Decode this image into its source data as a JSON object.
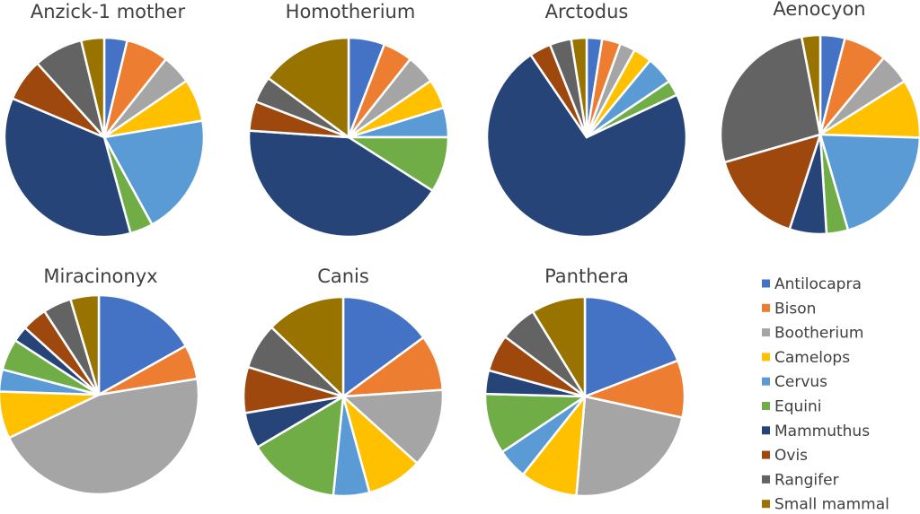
{
  "chart_data": [
    {
      "type": "pie",
      "title": "Anzick-1 mother",
      "categories": [
        "Antilocapra",
        "Bison",
        "Bootherium",
        "Camelops",
        "Cervus",
        "Equini",
        "Mammuthus",
        "Ovis",
        "Rangifer",
        "Small mammal"
      ],
      "values": [
        3.5,
        6.5,
        4.5,
        6.5,
        18.5,
        3.5,
        33.5,
        6.5,
        7.5,
        3.5
      ]
    },
    {
      "type": "pie",
      "title": "Homotherium",
      "categories": [
        "Antilocapra",
        "Bison",
        "Bootherium",
        "Camelops",
        "Cervus",
        "Equini",
        "Mammuthus",
        "Ovis",
        "Rangifer",
        "Small mammal"
      ],
      "values": [
        5.5,
        4.5,
        4.5,
        4.5,
        4.5,
        8.5,
        39.5,
        4.5,
        4.0,
        14.0
      ]
    },
    {
      "type": "pie",
      "title": "Arctodus",
      "categories": [
        "Antilocapra",
        "Bison",
        "Bootherium",
        "Camelops",
        "Cervus",
        "Equini",
        "Mammuthus",
        "Ovis",
        "Rangifer",
        "Small mammal"
      ],
      "values": [
        2.5,
        3.0,
        2.5,
        3.0,
        4.5,
        2.5,
        72.5,
        3.5,
        3.5,
        2.5
      ]
    },
    {
      "type": "pie",
      "title": "Aenocyon",
      "categories": [
        "Antilocapra",
        "Bison",
        "Bootherium",
        "Camelops",
        "Cervus",
        "Equini",
        "Mammuthus",
        "Ovis",
        "Rangifer",
        "Small mammal"
      ],
      "values": [
        4.0,
        7.0,
        5.0,
        9.5,
        20.0,
        3.5,
        6.0,
        15.5,
        26.5,
        3.0
      ]
    },
    {
      "type": "pie",
      "title": "Miracinonyx",
      "categories": [
        "Antilocapra",
        "Bison",
        "Bootherium",
        "Camelops",
        "Cervus",
        "Equini",
        "Mammuthus",
        "Ovis",
        "Rangifer",
        "Small mammal"
      ],
      "values": [
        16.5,
        5.5,
        44.5,
        7.5,
        3.5,
        5.0,
        2.5,
        4.0,
        4.5,
        4.5
      ]
    },
    {
      "type": "pie",
      "title": "Canis",
      "categories": [
        "Antilocapra",
        "Bison",
        "Bootherium",
        "Camelops",
        "Cervus",
        "Equini",
        "Mammuthus",
        "Ovis",
        "Rangifer",
        "Small mammal"
      ],
      "values": [
        14.0,
        8.5,
        12.0,
        8.5,
        5.5,
        14.0,
        5.5,
        7.0,
        7.0,
        12.0
      ]
    },
    {
      "type": "pie",
      "title": "Panthera",
      "categories": [
        "Antilocapra",
        "Bison",
        "Bootherium",
        "Camelops",
        "Cervus",
        "Equini",
        "Mammuthus",
        "Ovis",
        "Rangifer",
        "Small mammal"
      ],
      "values": [
        17.5,
        8.5,
        21.0,
        8.5,
        4.5,
        9.0,
        3.5,
        5.5,
        5.5,
        8.0
      ]
    }
  ],
  "legend": {
    "position": "bottom-right",
    "entries": [
      {
        "label": "Antilocapra",
        "color": "#4472C4"
      },
      {
        "label": "Bison",
        "color": "#ED7D31"
      },
      {
        "label": "Bootherium",
        "color": "#A5A5A5"
      },
      {
        "label": "Camelops",
        "color": "#FFC000"
      },
      {
        "label": "Cervus",
        "color": "#5B9BD5"
      },
      {
        "label": "Equini",
        "color": "#70AD47"
      },
      {
        "label": "Mammuthus",
        "color": "#264478"
      },
      {
        "label": "Ovis",
        "color": "#9E480E"
      },
      {
        "label": "Rangifer",
        "color": "#636363"
      },
      {
        "label": "Small mammal",
        "color": "#997300"
      }
    ]
  },
  "slice_border_color": "#FFFFFF"
}
